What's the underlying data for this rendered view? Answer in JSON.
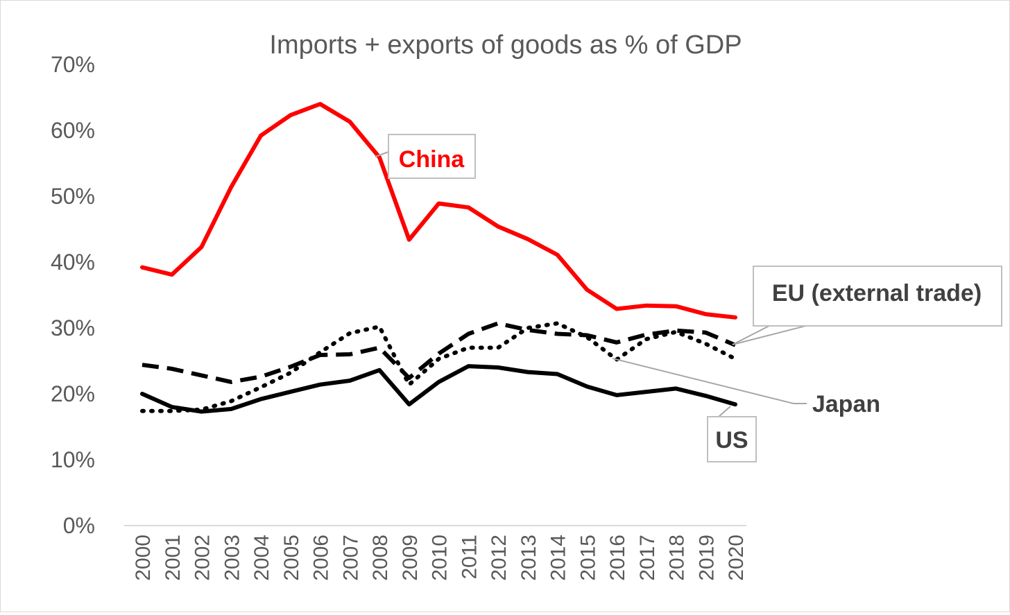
{
  "chart_data": {
    "type": "line",
    "title": "Imports + exports of goods as % of GDP",
    "xlabel": "",
    "ylabel": "",
    "x": [
      "2000",
      "2001",
      "2002",
      "2003",
      "2004",
      "2005",
      "2006",
      "2007",
      "2008",
      "2009",
      "2010",
      "2011",
      "2012",
      "2013",
      "2014",
      "2015",
      "2016",
      "2017",
      "2018",
      "2019",
      "2020"
    ],
    "yticks": [
      "0%",
      "10%",
      "20%",
      "30%",
      "40%",
      "50%",
      "60%",
      "70%"
    ],
    "ylim": [
      0,
      70
    ],
    "grid": false,
    "legend": "none (series labelled directly with callouts)",
    "series": [
      {
        "name": "China",
        "style": "solid",
        "color": "#ff0000",
        "values": [
          39.2,
          38.1,
          42.3,
          51.4,
          59.2,
          62.3,
          64.0,
          61.3,
          55.9,
          43.4,
          48.9,
          48.3,
          45.4,
          43.5,
          41.1,
          35.8,
          32.9,
          33.4,
          33.3,
          32.1,
          31.6
        ]
      },
      {
        "name": "EU (external trade)",
        "style": "dashed",
        "color": "#000000",
        "values": [
          24.4,
          23.8,
          22.8,
          21.8,
          22.6,
          24.1,
          25.9,
          26.0,
          27.0,
          22.4,
          26.1,
          29.1,
          30.7,
          29.7,
          29.1,
          28.9,
          27.8,
          29.0,
          29.6,
          29.3,
          27.4
        ]
      },
      {
        "name": "Japan",
        "style": "dotted",
        "color": "#000000",
        "values": [
          17.4,
          17.4,
          17.6,
          18.9,
          21.0,
          23.2,
          26.3,
          29.2,
          30.2,
          21.4,
          25.3,
          27.0,
          27.0,
          30.0,
          30.7,
          28.6,
          25.2,
          28.3,
          29.4,
          27.6,
          25.3
        ]
      },
      {
        "name": "US",
        "style": "solid",
        "color": "#000000",
        "values": [
          20.0,
          18.0,
          17.3,
          17.7,
          19.2,
          20.3,
          21.4,
          22.0,
          23.6,
          18.4,
          21.8,
          24.2,
          24.0,
          23.3,
          23.0,
          21.1,
          19.8,
          20.3,
          20.8,
          19.7,
          18.4
        ]
      }
    ],
    "annotations": [
      {
        "text": "China",
        "series": "China",
        "color": "#ff0000",
        "boxed": true
      },
      {
        "text": "EU (external trade)",
        "series": "EU (external trade)",
        "color": "#404040",
        "boxed": true
      },
      {
        "text": "Japan",
        "series": "Japan",
        "color": "#404040",
        "boxed": false
      },
      {
        "text": "US",
        "series": "US",
        "color": "#404040",
        "boxed": true
      }
    ]
  }
}
